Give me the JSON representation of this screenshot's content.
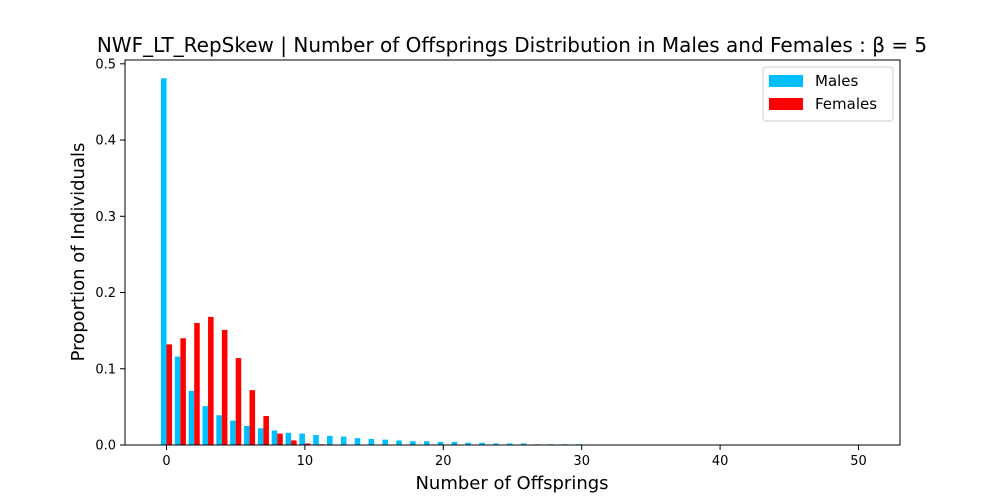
{
  "chart_data": {
    "type": "bar",
    "title": "NWF_LT_RepSkew | Number of Offsprings Distribution in Males and Females : β = 5",
    "xlabel": "Number of Offsprings",
    "ylabel": "Proportion of Individuals",
    "xlim": [
      -3,
      53
    ],
    "ylim": [
      0,
      0.505
    ],
    "xticks": [
      0,
      10,
      20,
      30,
      40,
      50
    ],
    "yticks": [
      0.0,
      0.1,
      0.2,
      0.3,
      0.4,
      0.5
    ],
    "ytick_labels": [
      "0.0",
      "0.1",
      "0.2",
      "0.3",
      "0.4",
      "0.5"
    ],
    "grid": false,
    "legend_position": "top-right",
    "x": [
      0,
      1,
      2,
      3,
      4,
      5,
      6,
      7,
      8,
      9,
      10,
      11,
      12,
      13,
      14,
      15,
      16,
      17,
      18,
      19,
      20,
      21,
      22,
      23,
      24,
      25,
      26,
      27,
      28,
      29,
      30
    ],
    "series": [
      {
        "name": "Males",
        "color": "#00bfff",
        "values": [
          0.481,
          0.116,
          0.071,
          0.051,
          0.039,
          0.032,
          0.025,
          0.022,
          0.019,
          0.016,
          0.015,
          0.013,
          0.012,
          0.011,
          0.009,
          0.008,
          0.007,
          0.006,
          0.005,
          0.005,
          0.004,
          0.004,
          0.003,
          0.003,
          0.002,
          0.002,
          0.002,
          0.001,
          0.001,
          0.001,
          0.001
        ]
      },
      {
        "name": "Females",
        "color": "#ff0000",
        "values": [
          0.132,
          0.14,
          0.16,
          0.168,
          0.151,
          0.114,
          0.072,
          0.038,
          0.015,
          0.006,
          0.002,
          0.001,
          0,
          0,
          0,
          0,
          0,
          0,
          0,
          0,
          0,
          0,
          0,
          0,
          0,
          0,
          0,
          0,
          0,
          0,
          0
        ]
      }
    ]
  }
}
